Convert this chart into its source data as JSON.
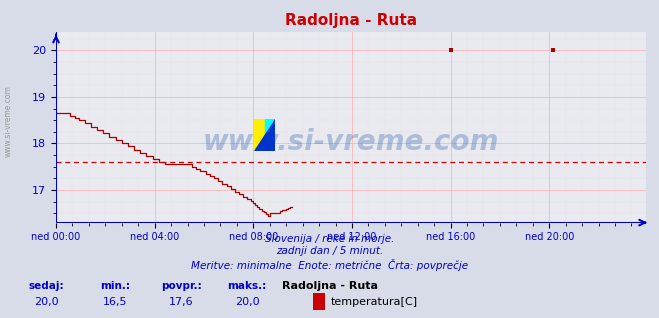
{
  "title": "Radoljna - Ruta",
  "title_color": "#cc0000",
  "title_fontsize": 11,
  "bg_color": "#d8dce8",
  "plot_bg_color": "#e8eaf0",
  "grid_major_color": "#ffaaaa",
  "grid_minor_color": "#ffcccc",
  "axis_color": "#0000cc",
  "text_color": "#0000cc",
  "ylabel_ticks": [
    17,
    18,
    19,
    20
  ],
  "ylim": [
    16.3,
    20.4
  ],
  "xlim": [
    0,
    287
  ],
  "xtick_positions": [
    0,
    48,
    96,
    144,
    192,
    240
  ],
  "xtick_labels": [
    "ned 00:00",
    "ned 04:00",
    "ned 08:00",
    "ned 12:00",
    "ned 16:00",
    "ned 20:00"
  ],
  "average_line": 17.6,
  "average_line_color": "#cc0000",
  "line_color": "#aa0000",
  "watermark": "www.si-vreme.com",
  "watermark_color": "#2255aa",
  "watermark_alpha": 0.3,
  "watermark_fontsize": 20,
  "left_text": "www.si-vreme.com",
  "footer_line1": "Slovenija / reke in morje.",
  "footer_line2": "zadnji dan / 5 minut.",
  "footer_line3": "Meritve: minimalne  Enote: metrične  Črta: povprečje",
  "stat_labels": [
    "sedaj:",
    "min.:",
    "povpr.:",
    "maks.:"
  ],
  "stat_values": [
    "20,0",
    "16,5",
    "17,6",
    "20,0"
  ],
  "station_name": "Radoljna - Ruta",
  "legend_label": "temperatura[C]",
  "legend_color": "#cc0000",
  "spike1_x": 192,
  "spike1_y": 20.0,
  "spike2_x": 242,
  "spike2_y": 20.0
}
